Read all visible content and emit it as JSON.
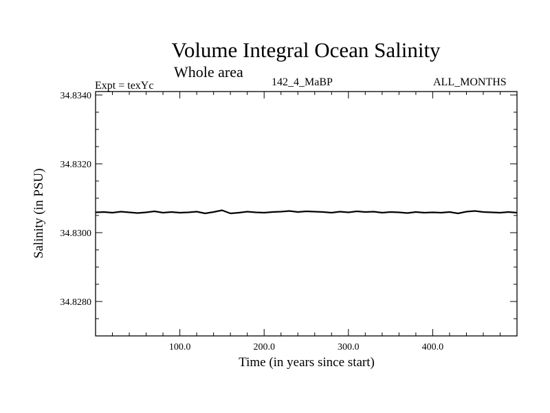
{
  "header": {
    "title": "Volume Integral Ocean Salinity",
    "subtitle": "Whole area",
    "experiment": "Expt = texYc",
    "run_id": "142_4_MaBP",
    "period": "ALL_MONTHS"
  },
  "chart_data": {
    "type": "line",
    "title": "Volume Integral Ocean Salinity",
    "subtitle": "Whole area",
    "xlabel": "Time (in years since start)",
    "ylabel": "Salinity (in PSU)",
    "xlim": [
      0,
      500
    ],
    "ylim": [
      34.827,
      34.8341
    ],
    "x_ticks": [
      100,
      200,
      300,
      400
    ],
    "x_tick_labels": [
      "100.0",
      "200.0",
      "300.0",
      "400.0"
    ],
    "y_ticks": [
      34.828,
      34.83,
      34.832,
      34.834
    ],
    "y_tick_labels": [
      "34.8280",
      "34.8300",
      "34.8320",
      "34.8340"
    ],
    "grid": false,
    "series": [
      {
        "x": [
          0,
          10,
          20,
          30,
          40,
          50,
          60,
          70,
          80,
          90,
          100,
          110,
          120,
          130,
          140,
          150,
          160,
          170,
          180,
          190,
          200,
          210,
          220,
          230,
          240,
          250,
          260,
          270,
          280,
          290,
          300,
          310,
          320,
          330,
          340,
          350,
          360,
          370,
          380,
          390,
          400,
          410,
          420,
          430,
          440,
          450,
          460,
          470,
          480,
          490,
          500
        ],
        "values": [
          34.83059,
          34.8306,
          34.83058,
          34.83061,
          34.83059,
          34.83057,
          34.83059,
          34.83062,
          34.83058,
          34.8306,
          34.83058,
          34.83059,
          34.83061,
          34.83056,
          34.8306,
          34.83065,
          34.83056,
          34.83058,
          34.83061,
          34.83059,
          34.83058,
          34.8306,
          34.83061,
          34.83063,
          34.8306,
          34.83062,
          34.83061,
          34.8306,
          34.83058,
          34.83061,
          34.83059,
          34.83062,
          34.8306,
          34.83061,
          34.83058,
          34.8306,
          34.83059,
          34.83057,
          34.8306,
          34.83058,
          34.83059,
          34.83058,
          34.8306,
          34.83056,
          34.83061,
          34.83063,
          34.8306,
          34.83059,
          34.83058,
          34.8306,
          34.83058
        ]
      }
    ]
  }
}
